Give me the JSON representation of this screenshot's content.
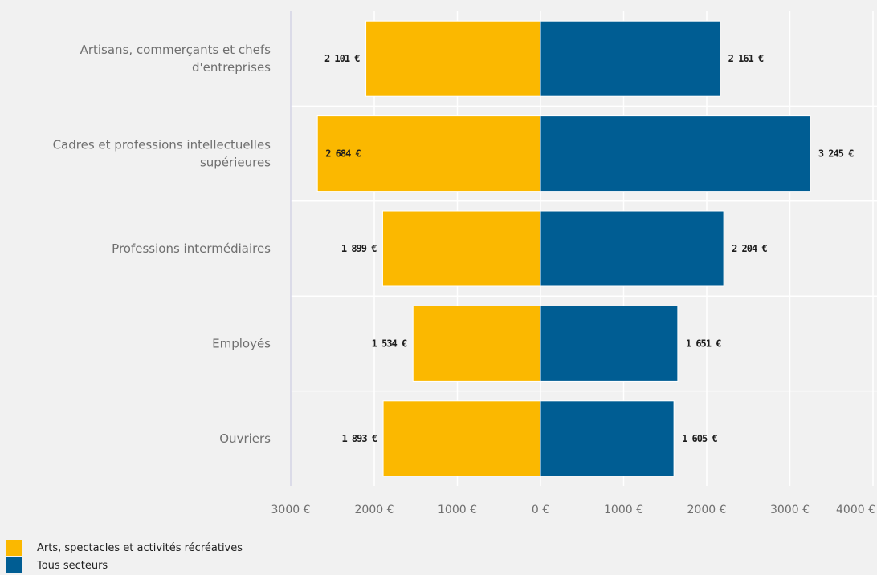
{
  "chart_data": {
    "type": "bar",
    "orientation": "horizontal-diverging",
    "categories": [
      "Artisans, commerçants et chefs d'entreprises",
      "Cadres et professions intellectuelles supérieures",
      "Professions intermédiaires",
      "Employés",
      "Ouvriers"
    ],
    "category_lines": [
      [
        "Artisans, commerçants et chefs",
        "d'entreprises"
      ],
      [
        "Cadres et professions intellectuelles",
        "supérieures"
      ],
      [
        "Professions intermédiaires"
      ],
      [
        "Employés"
      ],
      [
        "Ouvriers"
      ]
    ],
    "series": [
      {
        "name": "Arts, spectacles et activités récréatives",
        "side": "left",
        "color": "#fbb800",
        "values": [
          2101,
          2684,
          1899,
          1534,
          1893
        ],
        "labels": [
          "2 101 €",
          "2 684 €",
          "1 899 €",
          "1 534 €",
          "1 893 €"
        ]
      },
      {
        "name": "Tous secteurs",
        "side": "right",
        "color": "#005d93",
        "values": [
          2161,
          3245,
          2204,
          1651,
          1605
        ],
        "labels": [
          "2 161 €",
          "3 245 €",
          "2 204 €",
          "1 651 €",
          "1 605 €"
        ]
      }
    ],
    "x_ticks": [
      {
        "value": -3000,
        "label": "3000 €"
      },
      {
        "value": -2000,
        "label": "2000 €"
      },
      {
        "value": -1000,
        "label": "1000 €"
      },
      {
        "value": 0,
        "label": "0 €"
      },
      {
        "value": 1000,
        "label": "1000 €"
      },
      {
        "value": 2000,
        "label": "2000 €"
      },
      {
        "value": 3000,
        "label": "3000 €"
      },
      {
        "value": 4000,
        "label": "4000 €"
      }
    ],
    "xlim": [
      -3000,
      4000
    ],
    "grid": true,
    "legend_position": "bottom-left"
  }
}
